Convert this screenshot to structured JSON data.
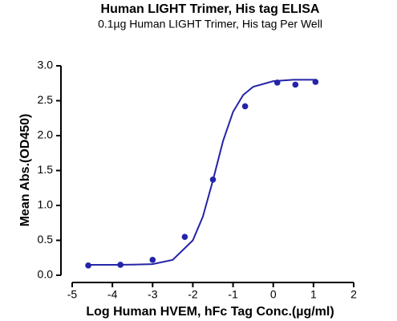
{
  "chart_data": {
    "type": "scatter",
    "title": "Human LIGHT Trimer, His tag ELISA",
    "subtitle": "0.1µg Human LIGHT Trimer, His tag Per Well",
    "x_label": "Log Human HVEM, hFc Tag Conc.(µg/ml)",
    "y_label": "Mean Abs.(OD450)",
    "color": "#2424a8",
    "x": [
      -4.6,
      -3.8,
      -3.0,
      -2.2,
      -1.5,
      -0.7,
      0.1,
      0.55,
      1.05
    ],
    "values": [
      0.14,
      0.15,
      0.22,
      0.55,
      1.37,
      2.42,
      2.76,
      2.73,
      2.77
    ],
    "curve": {
      "x": [
        -4.6,
        -4,
        -3.5,
        -3,
        -2.5,
        -2,
        -1.75,
        -1.5,
        -1.25,
        -1,
        -0.75,
        -0.5,
        0,
        0.5,
        1.05
      ],
      "values": [
        0.15,
        0.15,
        0.152,
        0.16,
        0.22,
        0.5,
        0.84,
        1.36,
        1.92,
        2.34,
        2.58,
        2.7,
        2.78,
        2.8,
        2.8
      ]
    },
    "xlim": [
      -5,
      2
    ],
    "xticks": [
      -5,
      -4,
      -3,
      -2,
      -1,
      0,
      1,
      2
    ],
    "ylim": [
      0,
      3
    ],
    "yticks": [
      {
        "value": 0,
        "label": "0.0"
      },
      {
        "value": 0.5,
        "label": "0.5"
      },
      {
        "value": 1,
        "label": "1.0"
      },
      {
        "value": 1.5,
        "label": "1.5"
      },
      {
        "value": 2,
        "label": "2.0"
      },
      {
        "value": 2.5,
        "label": "2.5"
      },
      {
        "value": 3,
        "label": "3.0"
      }
    ]
  }
}
